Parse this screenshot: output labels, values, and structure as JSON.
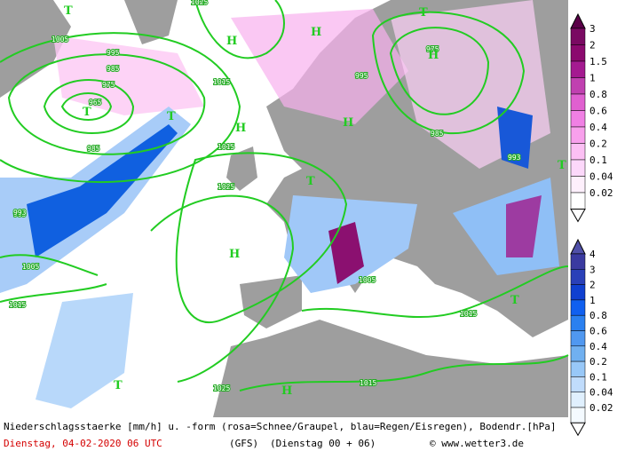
{
  "map": {
    "pressure_labels": [
      "1025",
      "1005",
      "995",
      "985",
      "975",
      "965",
      "1015",
      "985",
      "995",
      "1005",
      "1015",
      "1025",
      "995",
      "975",
      "985",
      "993",
      "993",
      "1015",
      "1015",
      "1025",
      "1005",
      "1015"
    ],
    "markers": [
      "T",
      "H",
      "T",
      "T",
      "H",
      "H",
      "T",
      "H",
      "H",
      "T",
      "T",
      "H",
      "H",
      "T",
      "T"
    ]
  },
  "legend": {
    "snow_scale": [
      "3",
      "2",
      "1.5",
      "1",
      "0.8",
      "0.6",
      "0.4",
      "0.2",
      "0.1",
      "0.04",
      "0.02"
    ],
    "rain_scale": [
      "4",
      "3",
      "2",
      "1",
      "0.8",
      "0.6",
      "0.4",
      "0.2",
      "0.1",
      "0.04",
      "0.02"
    ]
  },
  "caption": {
    "description": "Niederschlagsstaerke [mm/h] u. -form (rosa=Schnee/Graupel, blau=Regen/Eisregen), Bodendr.[hPa]",
    "date": "Dienstag, 04-02-2020  06 UTC",
    "model": "(GFS)",
    "run": "(Dienstag 00 + 06)",
    "source": "© www.wetter3.de"
  }
}
